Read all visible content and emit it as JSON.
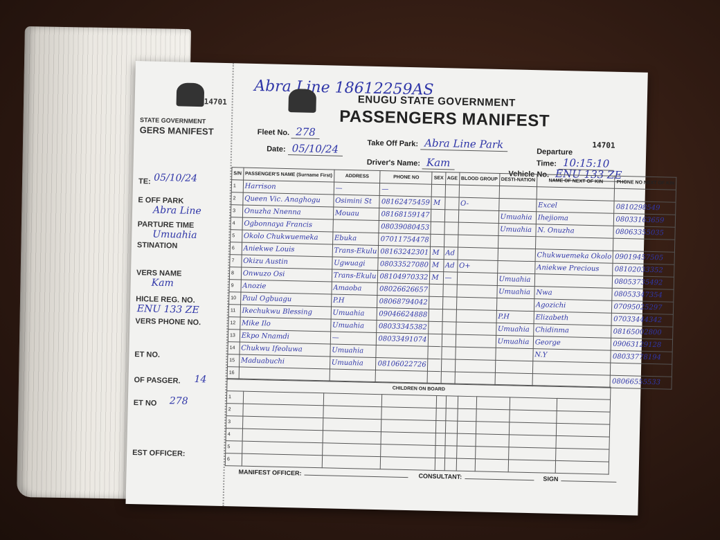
{
  "form": {
    "serial_number": "14701",
    "government": "ENUGU STATE GOVERNMENT",
    "title": "PASSENGERS MANIFEST",
    "top_note": "Abra Line 18612259AS",
    "fields": {
      "fleet_no_label": "Fleet No.",
      "fleet_no": "278",
      "take_off_park_label": "Take Off Park:",
      "take_off_park": "Abra Line Park",
      "date_label": "Date:",
      "date": "05/10/24",
      "drivers_name_label": "Driver's Name:",
      "drivers_name": "Kam",
      "departure_time_label": "Departure Time:",
      "departure_time": "10:15:10",
      "vehicle_no_label": "Vehicle No.",
      "vehicle_no": "ENU 133 ZE"
    },
    "columns": [
      "S/N",
      "PASSENGER'S NAME (Surname First)",
      "ADDRESS",
      "PHONE NO",
      "SEX",
      "AGE",
      "BLOOD GROUP",
      "DESTI-NATION",
      "NAME OF NEXT OF KIN",
      "PHONE NO NEXT OF KIN"
    ],
    "rows": [
      [
        "1",
        "Harrison",
        "—",
        "—",
        "",
        "",
        "",
        "",
        "",
        ""
      ],
      [
        "2",
        "Queen Vic. Anaghogu",
        "Osimini St",
        "08162475459",
        "M",
        "",
        "O-",
        "",
        "Excel",
        "0810298549"
      ],
      [
        "3",
        "Onuzha Nnenna",
        "Mouau",
        "08168159147",
        "",
        "",
        "",
        "Umuahia",
        "Ihejioma",
        "08033163659"
      ],
      [
        "4",
        "Ogbonnaya Francis",
        "",
        "08039080453",
        "",
        "",
        "",
        "Umuahia",
        "N. Onuzha",
        "08063355035"
      ],
      [
        "5",
        "Okolo Chukwuemeka",
        "Ebuka",
        "07011754478",
        "",
        "",
        "",
        "",
        "",
        ""
      ],
      [
        "6",
        "Aniekwe Louis",
        "Trans-Ekulu",
        "08163242301",
        "M",
        "Ad",
        "",
        "",
        "Chukwuemeka Okolo",
        "09019457505"
      ],
      [
        "7",
        "Okizu Austin",
        "Ugwuagi",
        "08033527080",
        "M",
        "Ad",
        "O+",
        "",
        "Aniekwe Precious",
        "08102033352"
      ],
      [
        "8",
        "Onwuzo Osi",
        "Trans-Ekulu",
        "08104970332",
        "M",
        "—",
        "",
        "Umuahia",
        "",
        "08053735492"
      ],
      [
        "9",
        "Anozie",
        "Amaoba",
        "08026626657",
        "",
        "",
        "",
        "Umuahia",
        "Nwa",
        "08053347354"
      ],
      [
        "10",
        "Paul Ogbuagu",
        "P.H",
        "08068794042",
        "",
        "",
        "",
        "",
        "Agozichi",
        "07095025297"
      ],
      [
        "11",
        "Ikechukwu Blessing",
        "Umuahia",
        "09046624888",
        "",
        "",
        "",
        "P.H",
        "Elizabeth",
        "07033444342"
      ],
      [
        "12",
        "Mike Ilo",
        "Umuahia",
        "08033345382",
        "",
        "",
        "",
        "Umuahia",
        "Chidinma",
        "08165002800"
      ],
      [
        "13",
        "Ekpo Nnamdi",
        "—",
        "08033491074",
        "",
        "",
        "",
        "Umuahia",
        "George",
        "09063129128"
      ],
      [
        "14",
        "Chukwu Ifeoluwa",
        "Umuahia",
        "",
        "",
        "",
        "",
        "",
        "N.Y",
        "08033778194"
      ],
      [
        "15",
        "Maduabuchi",
        "Umuahia",
        "08106022726",
        "",
        "",
        "",
        "",
        "",
        ""
      ],
      [
        "16",
        "",
        "",
        "",
        "",
        "",
        "",
        "",
        "",
        "08066555533"
      ]
    ],
    "children_label": "CHILDREN ON BOARD",
    "children_rows": [
      "1",
      "2",
      "3",
      "4",
      "5",
      "6"
    ],
    "footer": {
      "manifest_officer": "MANIFEST OFFICER:",
      "consultant": "CONSULTANT:",
      "sign": "SIGN"
    }
  },
  "stub": {
    "serial_number": "14701",
    "government": "STATE GOVERNMENT",
    "title": "GERS MANIFEST",
    "date_label": "TE:",
    "date": "05/10/24",
    "take_off_label": "E OFF PARK",
    "take_off": "Abra Line",
    "departure_label": "PARTURE TIME",
    "destination": "Umuahia",
    "destination_label": "STINATION",
    "drivers_name_label": "VERS NAME",
    "drivers_name": "Kam",
    "vehicle_label": "HICLE REG. NO.",
    "vehicle": "ENU 133 ZE",
    "drivers_phone_label": "VERS PHONE NO.",
    "ticket_label": "ET NO.",
    "passengers_label": "OF PASGER.",
    "passengers": "14",
    "fleet_label": "ET NO",
    "fleet": "278",
    "officer_label": "EST OFFICER:"
  },
  "colors": {
    "ink": "#2f36a8",
    "paper": "#f2f2f0",
    "table_wood": "#3a2116"
  }
}
